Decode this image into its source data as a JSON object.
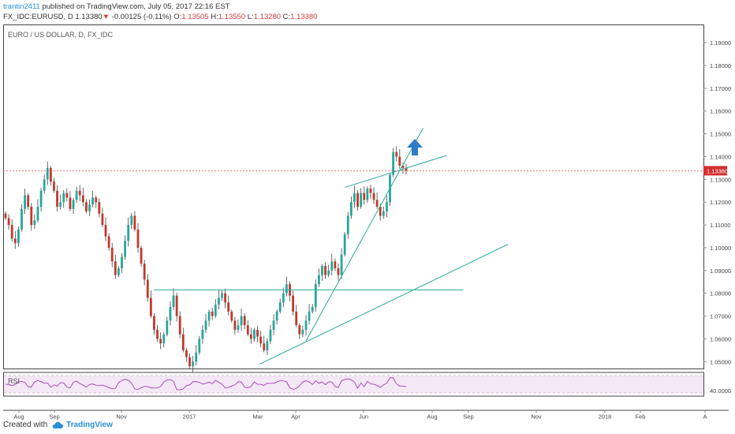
{
  "header": {
    "user": "trantin2411",
    "published": "published on TradingView.com, July 05, 2017 22:16 EST",
    "symbol": "FX_IDC:EURUSD, D",
    "last": "1.13380",
    "change": "-0.00125 (-0.11%)",
    "ohlc": {
      "o_label": "O:",
      "o": "1.13505",
      "h_label": "H:",
      "h": "1.13550",
      "l_label": "L:",
      "l": "1.13280",
      "c_label": "C:",
      "c": "1.13380"
    }
  },
  "footer": {
    "created_with": "Created with",
    "brand": "TradingView"
  },
  "colors": {
    "up": "#26a69a",
    "down": "#c0392b",
    "wick": "#444444",
    "trend": "#2aa89a",
    "price_line": "#e05050",
    "rsi_line": "#9c27b0",
    "rsi_band": "#f3e5f5",
    "arrow": "#2d7cc4"
  },
  "chart_data": {
    "type": "candlestick",
    "title": "EURO / US DOLLAR, D, FX_IDC",
    "x_ticks": [
      "Aug",
      "Sep",
      "Nov",
      "2017",
      "Mar",
      "Apr",
      "Jun",
      "Aug",
      "Sep",
      "Nov",
      "2018",
      "Feb",
      "A"
    ],
    "y_ticks": [
      "1.19000",
      "1.18000",
      "1.17000",
      "1.16000",
      "1.15000",
      "1.14000",
      "1.13000",
      "1.12000",
      "1.11000",
      "1.10000",
      "1.09000",
      "1.08000",
      "1.07000",
      "1.06000",
      "1.05000"
    ],
    "ylim": [
      1.047,
      1.198
    ],
    "last_price_label": "1.13380",
    "last_price": 1.1338,
    "indicator": {
      "name": "RSI",
      "level_label": "40.0000"
    },
    "close_path": [
      1.113,
      1.11,
      1.104,
      1.102,
      1.108,
      1.117,
      1.123,
      1.118,
      1.11,
      1.112,
      1.118,
      1.125,
      1.13,
      1.135,
      1.129,
      1.125,
      1.118,
      1.12,
      1.124,
      1.122,
      1.117,
      1.121,
      1.125,
      1.123,
      1.12,
      1.116,
      1.119,
      1.122,
      1.12,
      1.115,
      1.11,
      1.105,
      1.1,
      1.094,
      1.088,
      1.091,
      1.096,
      1.103,
      1.11,
      1.114,
      1.108,
      1.1,
      1.093,
      1.086,
      1.078,
      1.07,
      1.064,
      1.06,
      1.058,
      1.062,
      1.068,
      1.074,
      1.079,
      1.07,
      1.062,
      1.055,
      1.052,
      1.048,
      1.05,
      1.054,
      1.06,
      1.064,
      1.068,
      1.072,
      1.07,
      1.075,
      1.078,
      1.08,
      1.076,
      1.072,
      1.068,
      1.064,
      1.066,
      1.07,
      1.066,
      1.062,
      1.06,
      1.064,
      1.061,
      1.058,
      1.055,
      1.059,
      1.064,
      1.068,
      1.072,
      1.076,
      1.08,
      1.084,
      1.079,
      1.072,
      1.066,
      1.062,
      1.064,
      1.068,
      1.072,
      1.074,
      1.084,
      1.088,
      1.092,
      1.088,
      1.09,
      1.094,
      1.091,
      1.088,
      1.097,
      1.106,
      1.114,
      1.12,
      1.124,
      1.118,
      1.124,
      1.121,
      1.126,
      1.124,
      1.121,
      1.118,
      1.114,
      1.116,
      1.12,
      1.132,
      1.142,
      1.14,
      1.136,
      1.135,
      1.1338
    ],
    "trend_lines": [
      {
        "name": "lower-support-line",
        "from": [
          "2017-02-28",
          1.049
        ],
        "to": [
          "2017-10-08",
          1.1015
        ]
      },
      {
        "name": "steep-support-line",
        "from": [
          "2017-04-10",
          1.059
        ],
        "to": [
          "2017-07-24",
          1.1525
        ]
      },
      {
        "name": "upper-channel-line",
        "from": [
          "2017-05-15",
          1.1265
        ],
        "to": [
          "2017-08-14",
          1.1405
        ]
      },
      {
        "name": "horizontal-line",
        "from": [
          "2016-11-25",
          1.0815
        ],
        "to": [
          "2017-08-29",
          1.0815
        ]
      }
    ]
  }
}
